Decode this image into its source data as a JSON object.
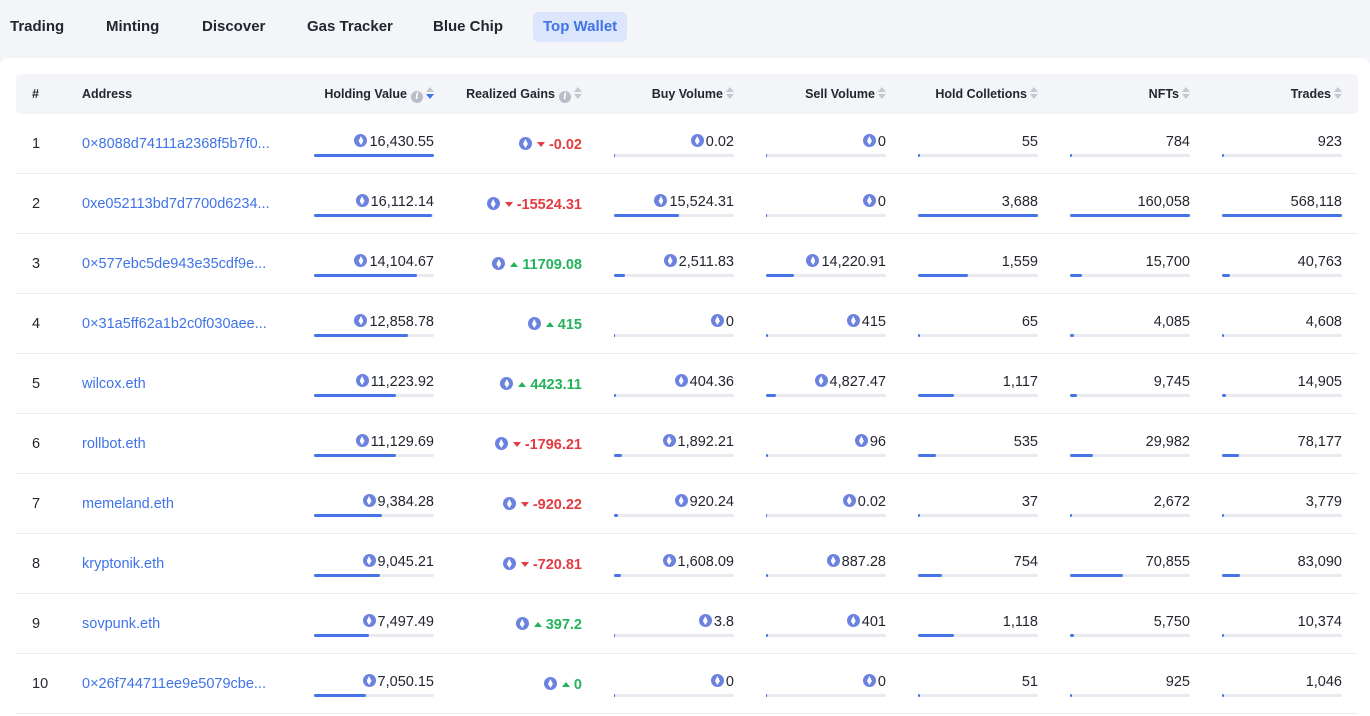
{
  "tabs": [
    {
      "label": "Trading",
      "active": false
    },
    {
      "label": "Minting",
      "active": false
    },
    {
      "label": "Discover",
      "active": false
    },
    {
      "label": "Gas Tracker",
      "active": false
    },
    {
      "label": "Blue Chip",
      "active": false
    },
    {
      "label": "Top Wallet",
      "active": true
    }
  ],
  "columns": {
    "rank": "#",
    "address": "Address",
    "holding_value": "Holding Value",
    "realized_gains": "Realized Gains",
    "buy_volume": "Buy Volume",
    "sell_volume": "Sell Volume",
    "hold_collections": "Hold Colletions",
    "nfts": "NFTs",
    "trades": "Trades"
  },
  "colors": {
    "accent": "#3f73e8",
    "gain_negative": "#e23b43",
    "gain_positive": "#23b35c",
    "bar": "#4673e6"
  },
  "icons": {
    "currency": "eth-icon",
    "info": "info-icon",
    "sort": "sort-icon"
  },
  "rows": [
    {
      "rank": "1",
      "address": "0×8088d74111a2368f5b7f0...",
      "holding": "16,430.55",
      "holding_pct": 1.0,
      "gain": "-0.02",
      "gain_dir": "down",
      "buy": "0.02",
      "buy_pct": 0.0,
      "sell": "0",
      "sell_pct": 0.0,
      "collections": "55",
      "collections_pct": 0.015,
      "nfts": "784",
      "nfts_pct": 0.005,
      "trades": "923",
      "trades_pct": 0.002
    },
    {
      "rank": "2",
      "address": "0xe052113bd7d7700d6234...",
      "holding": "16,112.14",
      "holding_pct": 0.98,
      "gain": "-15524.31",
      "gain_dir": "down",
      "buy": "15,524.31",
      "buy_pct": 0.54,
      "sell": "0",
      "sell_pct": 0.0,
      "collections": "3,688",
      "collections_pct": 1.0,
      "nfts": "160,058",
      "nfts_pct": 1.0,
      "trades": "568,118",
      "trades_pct": 1.0
    },
    {
      "rank": "3",
      "address": "0×577ebc5de943e35cdf9e...",
      "holding": "14,104.67",
      "holding_pct": 0.86,
      "gain": "11709.08",
      "gain_dir": "up",
      "buy": "2,511.83",
      "buy_pct": 0.09,
      "sell": "14,220.91",
      "sell_pct": 0.23,
      "collections": "1,559",
      "collections_pct": 0.42,
      "nfts": "15,700",
      "nfts_pct": 0.1,
      "trades": "40,763",
      "trades_pct": 0.07
    },
    {
      "rank": "4",
      "address": "0×31a5ff62a1b2c0f030aee...",
      "holding": "12,858.78",
      "holding_pct": 0.78,
      "gain": "415",
      "gain_dir": "up",
      "buy": "0",
      "buy_pct": 0.0,
      "sell": "415",
      "sell_pct": 0.01,
      "collections": "65",
      "collections_pct": 0.02,
      "nfts": "4,085",
      "nfts_pct": 0.03,
      "trades": "4,608",
      "trades_pct": 0.01
    },
    {
      "rank": "5",
      "address": "wilcox.eth",
      "holding": "11,223.92",
      "holding_pct": 0.68,
      "gain": "4423.11",
      "gain_dir": "up",
      "buy": "404.36",
      "buy_pct": 0.015,
      "sell": "4,827.47",
      "sell_pct": 0.08,
      "collections": "1,117",
      "collections_pct": 0.3,
      "nfts": "9,745",
      "nfts_pct": 0.06,
      "trades": "14,905",
      "trades_pct": 0.03
    },
    {
      "rank": "6",
      "address": "rollbot.eth",
      "holding": "11,129.69",
      "holding_pct": 0.68,
      "gain": "-1796.21",
      "gain_dir": "down",
      "buy": "1,892.21",
      "buy_pct": 0.07,
      "sell": "96",
      "sell_pct": 0.005,
      "collections": "535",
      "collections_pct": 0.15,
      "nfts": "29,982",
      "nfts_pct": 0.19,
      "trades": "78,177",
      "trades_pct": 0.14
    },
    {
      "rank": "7",
      "address": "memeland.eth",
      "holding": "9,384.28",
      "holding_pct": 0.57,
      "gain": "-920.22",
      "gain_dir": "down",
      "buy": "920.24",
      "buy_pct": 0.03,
      "sell": "0.02",
      "sell_pct": 0.0,
      "collections": "37",
      "collections_pct": 0.01,
      "nfts": "2,672",
      "nfts_pct": 0.02,
      "trades": "3,779",
      "trades_pct": 0.007
    },
    {
      "rank": "8",
      "address": "kryptonik.eth",
      "holding": "9,045.21",
      "holding_pct": 0.55,
      "gain": "-720.81",
      "gain_dir": "down",
      "buy": "1,608.09",
      "buy_pct": 0.06,
      "sell": "887.28",
      "sell_pct": 0.015,
      "collections": "754",
      "collections_pct": 0.2,
      "nfts": "70,855",
      "nfts_pct": 0.44,
      "trades": "83,090",
      "trades_pct": 0.15
    },
    {
      "rank": "9",
      "address": "sovpunk.eth",
      "holding": "7,497.49",
      "holding_pct": 0.46,
      "gain": "397.2",
      "gain_dir": "up",
      "buy": "3.8",
      "buy_pct": 0.0,
      "sell": "401",
      "sell_pct": 0.01,
      "collections": "1,118",
      "collections_pct": 0.3,
      "nfts": "5,750",
      "nfts_pct": 0.036,
      "trades": "10,374",
      "trades_pct": 0.02
    },
    {
      "rank": "10",
      "address": "0×26f744711ee9e5079cbe...",
      "holding": "7,050.15",
      "holding_pct": 0.43,
      "gain": "0",
      "gain_dir": "up",
      "buy": "0",
      "buy_pct": 0.0,
      "sell": "0",
      "sell_pct": 0.0,
      "collections": "51",
      "collections_pct": 0.014,
      "nfts": "925",
      "nfts_pct": 0.006,
      "trades": "1,046",
      "trades_pct": 0.002
    }
  ]
}
